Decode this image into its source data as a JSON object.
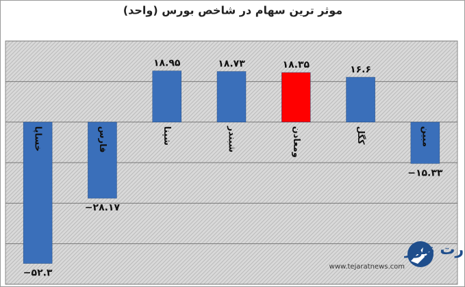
{
  "chart_data": {
    "type": "bar",
    "title": "موثر ترین سهام در شاخص بورس (واحد)",
    "categories": [
      "خساپا",
      "فارس",
      "شپنا",
      "شبندر",
      "ومعادن",
      "کگل",
      "مبین"
    ],
    "values": [
      -52.3,
      -28.17,
      18.95,
      18.73,
      18.35,
      16.6,
      -15.33
    ],
    "value_labels": [
      "−۵۲.۳",
      "−۲۸.۱۷",
      "۱۸.۹۵",
      "۱۸.۷۳",
      "۱۸.۳۵",
      "۱۶.۶",
      "−۱۵.۳۳"
    ],
    "colors": [
      "#3a6fba",
      "#3a6fba",
      "#3a6fba",
      "#3a6fba",
      "#ff0000",
      "#3a6fba",
      "#3a6fba"
    ],
    "ylim": [
      -60,
      30
    ],
    "yticks": [
      -60,
      -45,
      -30,
      -15,
      0,
      15,
      30
    ],
    "grid": true,
    "annotations": [
      "تجارت نیوز",
      "www.tejaratnews.com"
    ]
  }
}
